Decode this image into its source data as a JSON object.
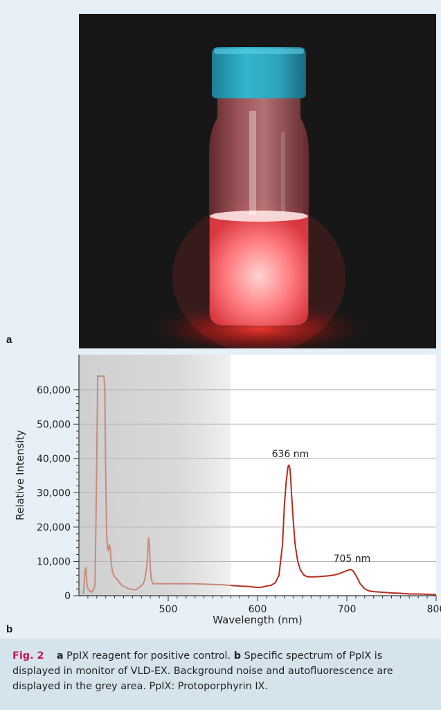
{
  "panel_a": {
    "letter": "a"
  },
  "panel_b": {
    "letter": "b"
  },
  "chart_data": {
    "type": "line",
    "title": "",
    "xlabel": "Wavelength (nm)",
    "ylabel": "Relative Intensity",
    "xlim": [
      400,
      800
    ],
    "ylim": [
      0,
      65000
    ],
    "x_ticks": [
      500,
      600,
      700,
      800
    ],
    "x_tick_labels": [
      "500",
      "600",
      "700",
      "800"
    ],
    "y_ticks": [
      0,
      10000,
      20000,
      30000,
      40000,
      50000,
      60000
    ],
    "y_tick_labels": [
      "0",
      "10,000",
      "20,000",
      "30,000",
      "40,000",
      "50,000",
      "60,000"
    ],
    "grid": "horizontal",
    "shaded_region": [
      400,
      570
    ],
    "annotations": [
      {
        "text": "636 nm",
        "x": 636,
        "y": 38000
      },
      {
        "text": "705 nm",
        "x": 705,
        "y": 7500
      }
    ],
    "series": [
      {
        "color": "#b42c1c",
        "x": [
          405,
          407,
          408,
          409,
          410,
          412,
          414,
          416,
          418,
          419,
          420,
          421,
          422,
          423,
          424,
          425,
          426,
          427,
          428,
          429,
          430,
          431,
          432,
          433,
          434,
          435,
          436,
          437,
          438,
          440,
          442,
          445,
          448,
          452,
          456,
          460,
          464,
          468,
          472,
          474,
          476,
          477,
          478,
          479,
          480,
          481,
          482,
          483,
          485,
          488,
          492,
          500,
          510,
          520,
          530,
          540,
          550,
          560,
          570,
          580,
          590,
          600,
          605,
          610,
          615,
          620,
          624,
          628,
          630,
          632,
          634,
          635,
          636,
          637,
          638,
          640,
          642,
          645,
          648,
          652,
          656,
          660,
          665,
          670,
          675,
          680,
          685,
          690,
          695,
          700,
          703,
          705,
          707,
          710,
          715,
          720,
          725,
          730,
          740,
          750,
          760,
          770,
          780,
          790,
          800
        ],
        "y": [
          500,
          7500,
          8000,
          3500,
          2000,
          1500,
          1000,
          1500,
          3000,
          20000,
          40000,
          64000,
          64000,
          64000,
          64000,
          64000,
          64000,
          64000,
          64000,
          60000,
          35000,
          18000,
          14000,
          13000,
          15000,
          14000,
          10000,
          8000,
          6500,
          5500,
          5000,
          4000,
          3000,
          2500,
          2000,
          1800,
          1800,
          2500,
          3500,
          5000,
          8500,
          12000,
          17000,
          15000,
          8000,
          5000,
          4000,
          3500,
          3500,
          3500,
          3500,
          3500,
          3500,
          3500,
          3500,
          3400,
          3300,
          3200,
          3000,
          2800,
          2700,
          2400,
          2500,
          2800,
          3000,
          3800,
          6000,
          15000,
          26000,
          33000,
          37500,
          38000,
          37500,
          35000,
          30000,
          22000,
          15000,
          10000,
          7500,
          6000,
          5500,
          5500,
          5500,
          5600,
          5700,
          5800,
          6000,
          6300,
          6800,
          7300,
          7600,
          7600,
          7200,
          6000,
          3500,
          2000,
          1400,
          1200,
          1000,
          800,
          700,
          500,
          500,
          400,
          300
        ]
      }
    ]
  },
  "caption": {
    "fig": "Fig. 2",
    "a_letter": "a",
    "a_text": "PpIX reagent for positive control.",
    "b_letter": "b",
    "b_text": "Specific spectrum of PpIX is displayed in monitor of VLD-EX. Background noise and autofluorescence are displayed in the grey area. PpIX: Protoporphyrin IX."
  }
}
